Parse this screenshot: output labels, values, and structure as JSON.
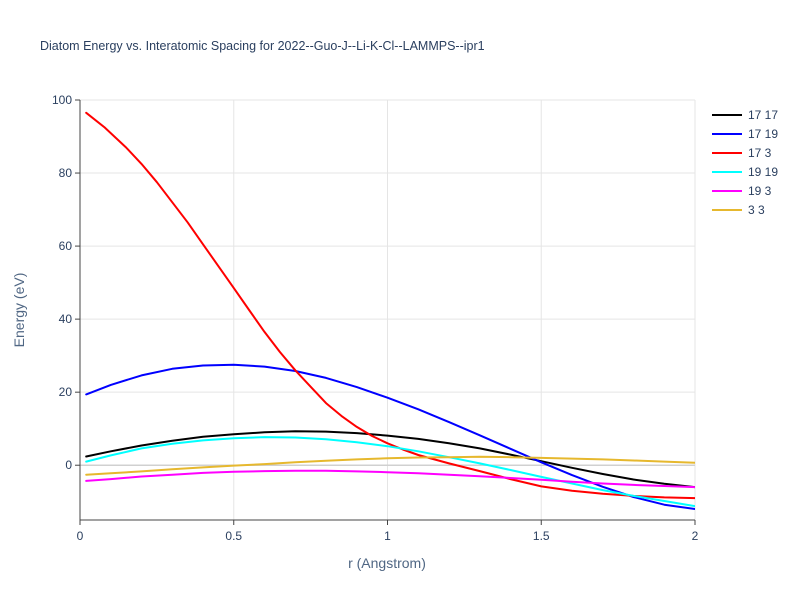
{
  "chart_data": {
    "type": "line",
    "title": "Diatom Energy vs. Interatomic Spacing for 2022--Guo-J--Li-K-Cl--LAMMPS--ipr1",
    "xlabel": "r (Angstrom)",
    "ylabel": "Energy (eV)",
    "xlim": [
      0,
      2
    ],
    "ylim": [
      -15,
      100
    ],
    "xticks": [
      0,
      0.5,
      1,
      1.5,
      2
    ],
    "xtick_labels": [
      "0",
      "0.5",
      "1",
      "1.5",
      "2"
    ],
    "yticks": [
      0,
      20,
      40,
      60,
      80,
      100
    ],
    "ytick_labels": [
      "0",
      "20",
      "40",
      "60",
      "80",
      "100"
    ],
    "grid": true,
    "legend_position": "top-right",
    "series": [
      {
        "name": "17 17",
        "color": "#000000",
        "x": [
          0.02,
          0.1,
          0.2,
          0.3,
          0.4,
          0.5,
          0.6,
          0.7,
          0.8,
          0.9,
          1.0,
          1.1,
          1.2,
          1.3,
          1.4,
          1.5,
          1.6,
          1.7,
          1.8,
          1.9,
          2.0
        ],
        "y": [
          2.4,
          3.8,
          5.4,
          6.7,
          7.8,
          8.5,
          9.0,
          9.3,
          9.2,
          8.8,
          8.1,
          7.2,
          6.0,
          4.6,
          2.9,
          1.1,
          -0.7,
          -2.4,
          -3.9,
          -5.1,
          -6.0
        ]
      },
      {
        "name": "17 19",
        "color": "#0000ff",
        "x": [
          0.02,
          0.1,
          0.2,
          0.3,
          0.4,
          0.5,
          0.6,
          0.7,
          0.8,
          0.9,
          1.0,
          1.1,
          1.2,
          1.3,
          1.4,
          1.5,
          1.6,
          1.7,
          1.8,
          1.9,
          2.0
        ],
        "y": [
          19.4,
          22.0,
          24.6,
          26.4,
          27.3,
          27.5,
          27.0,
          25.8,
          23.9,
          21.4,
          18.5,
          15.3,
          11.8,
          8.2,
          4.5,
          0.8,
          -2.7,
          -5.9,
          -8.7,
          -10.8,
          -12.0
        ]
      },
      {
        "name": "17 3",
        "color": "#ff0000",
        "x": [
          0.02,
          0.08,
          0.15,
          0.2,
          0.25,
          0.3,
          0.35,
          0.4,
          0.45,
          0.5,
          0.55,
          0.6,
          0.65,
          0.7,
          0.75,
          0.8,
          0.85,
          0.9,
          0.95,
          1.0,
          1.05,
          1.1,
          1.2,
          1.3,
          1.4,
          1.5,
          1.6,
          1.7,
          1.8,
          1.9,
          2.0
        ],
        "y": [
          96.5,
          92.5,
          87.0,
          82.5,
          77.5,
          72.0,
          66.5,
          60.5,
          54.5,
          48.5,
          42.5,
          36.5,
          31.0,
          26.0,
          21.5,
          17.0,
          13.5,
          10.5,
          8.0,
          6.0,
          4.3,
          2.8,
          0.5,
          -1.6,
          -3.8,
          -5.8,
          -7.0,
          -7.8,
          -8.4,
          -8.8,
          -9.0
        ]
      },
      {
        "name": "19 19",
        "color": "#00ffff",
        "x": [
          0.02,
          0.1,
          0.2,
          0.3,
          0.4,
          0.5,
          0.6,
          0.7,
          0.8,
          0.9,
          1.0,
          1.1,
          1.2,
          1.3,
          1.4,
          1.5,
          1.6,
          1.7,
          1.8,
          1.9,
          2.0
        ],
        "y": [
          1.0,
          2.7,
          4.6,
          5.9,
          6.8,
          7.4,
          7.7,
          7.6,
          7.1,
          6.3,
          5.2,
          3.8,
          2.2,
          0.5,
          -1.3,
          -3.2,
          -5.0,
          -6.8,
          -8.4,
          -9.8,
          -11.2
        ]
      },
      {
        "name": "19 3",
        "color": "#ff00ff",
        "x": [
          0.02,
          0.1,
          0.2,
          0.3,
          0.4,
          0.5,
          0.6,
          0.7,
          0.8,
          0.9,
          1.0,
          1.1,
          1.2,
          1.3,
          1.4,
          1.5,
          1.6,
          1.7,
          1.8,
          1.9,
          2.0
        ],
        "y": [
          -4.3,
          -3.8,
          -3.1,
          -2.6,
          -2.1,
          -1.8,
          -1.6,
          -1.5,
          -1.5,
          -1.7,
          -1.9,
          -2.2,
          -2.6,
          -3.0,
          -3.5,
          -4.0,
          -4.5,
          -5.0,
          -5.4,
          -5.7,
          -6.0
        ]
      },
      {
        "name": "3 3",
        "color": "#e6b82e",
        "x": [
          0.02,
          0.1,
          0.2,
          0.3,
          0.4,
          0.5,
          0.6,
          0.7,
          0.8,
          0.9,
          1.0,
          1.1,
          1.2,
          1.3,
          1.4,
          1.5,
          1.6,
          1.7,
          1.8,
          1.9,
          2.0
        ],
        "y": [
          -2.6,
          -2.2,
          -1.7,
          -1.1,
          -0.6,
          -0.1,
          0.3,
          0.8,
          1.2,
          1.6,
          1.9,
          2.1,
          2.2,
          2.3,
          2.2,
          2.0,
          1.8,
          1.6,
          1.3,
          1.0,
          0.7
        ]
      }
    ]
  }
}
